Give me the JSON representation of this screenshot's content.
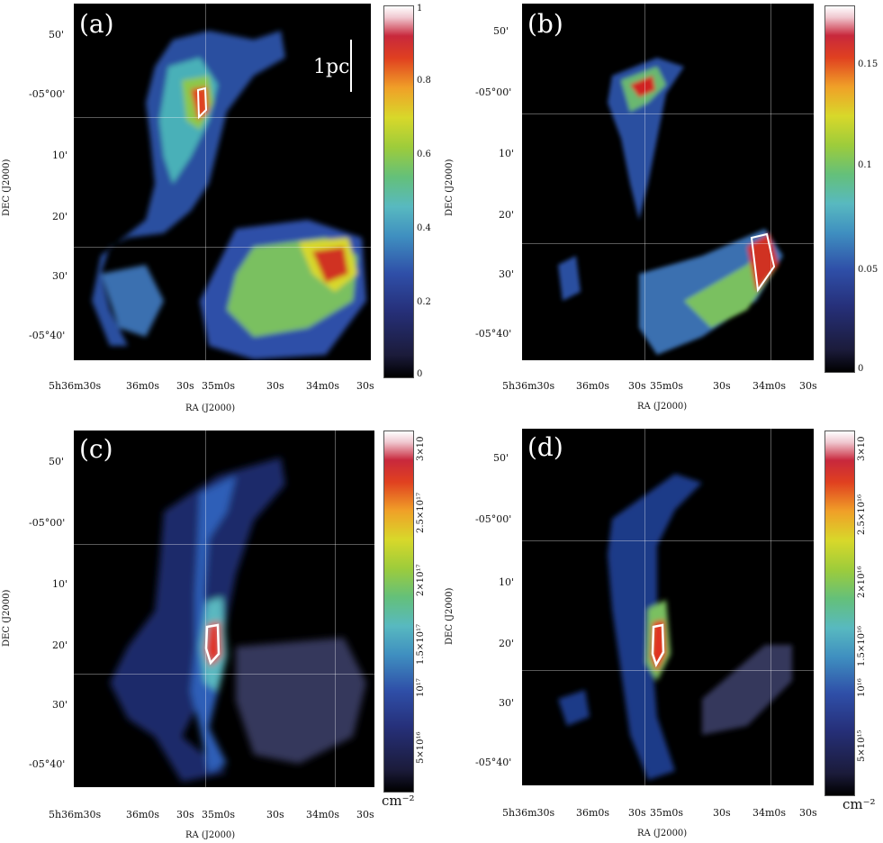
{
  "figure": {
    "panels": [
      {
        "label": "(a)",
        "scalebar": "1pc",
        "ra_ticks": [
          "5h36m30s",
          "36m0s",
          "30s",
          "35m0s",
          "30s",
          "34m0s",
          "30s"
        ],
        "dec_ticks": [
          "50'",
          "-05°00'",
          "10'",
          "20'",
          "30'",
          "-05°40'"
        ],
        "xlabel": "RA (J2000)",
        "ylabel": "DEC (J2000)",
        "colorbar": {
          "ticks": [
            "1",
            "0.8",
            "0.6",
            "0.4",
            "0.2",
            "0"
          ],
          "unit": ""
        }
      },
      {
        "label": "(b)",
        "scalebar": "",
        "ra_ticks": [
          "5h36m30s",
          "36m0s",
          "30s",
          "35m0s",
          "30s",
          "34m0s",
          "30s"
        ],
        "dec_ticks": [
          "50'",
          "-05°00'",
          "10'",
          "20'",
          "30'",
          "-05°40'"
        ],
        "xlabel": "RA (J2000)",
        "ylabel": "DEC (J2000)",
        "colorbar": {
          "ticks": [
            "0.15",
            "0.1",
            "0.05",
            "0"
          ],
          "unit": ""
        }
      },
      {
        "label": "(c)",
        "scalebar": "",
        "ra_ticks": [
          "5h36m30s",
          "36m0s",
          "30s",
          "35m0s",
          "30s",
          "34m0s",
          "30s"
        ],
        "dec_ticks": [
          "50'",
          "-05°00'",
          "10'",
          "20'",
          "30'",
          "-05°40'"
        ],
        "xlabel": "RA (J2000)",
        "ylabel": "DEC (J2000)",
        "colorbar": {
          "ticks": [
            "3×10",
            "2.5×10¹⁷",
            "2×10¹⁷",
            "1.5×10¹⁷",
            "10¹⁷",
            "5×10¹⁶"
          ],
          "unit": "cm⁻²"
        }
      },
      {
        "label": "(d)",
        "scalebar": "",
        "ra_ticks": [
          "5h36m30s",
          "36m0s",
          "30s",
          "35m0s",
          "30s",
          "34m0s",
          "30s"
        ],
        "dec_ticks": [
          "50'",
          "-05°00'",
          "10'",
          "20'",
          "30'",
          "-05°40'"
        ],
        "xlabel": "RA (J2000)",
        "ylabel": "DEC (J2000)",
        "colorbar": {
          "ticks": [
            "3×10",
            "2.5×10¹⁶",
            "2×10¹⁶",
            "1.5×10¹⁶",
            "10¹⁶",
            "5×10¹⁵"
          ],
          "unit": "cm⁻²"
        }
      }
    ]
  }
}
